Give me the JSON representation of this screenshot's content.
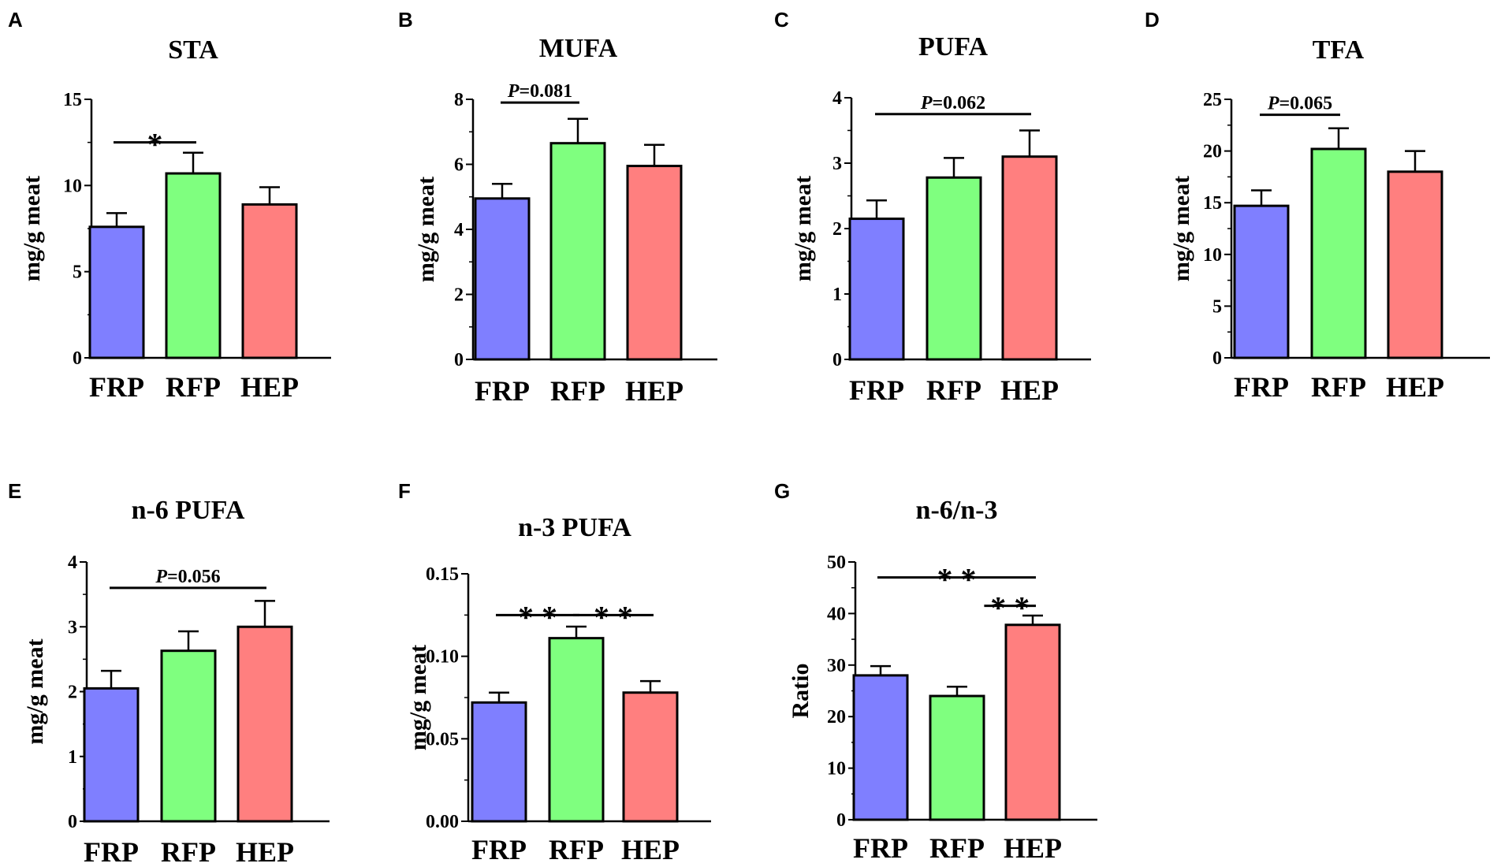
{
  "chart_data": [
    {
      "panel": "A",
      "type": "bar",
      "title": "STA",
      "ylabel": "mg/g meat",
      "categories": [
        "FRP",
        "RFP",
        "HEP"
      ],
      "values": [
        7.6,
        10.7,
        8.9
      ],
      "errors": [
        0.8,
        1.2,
        1.0
      ],
      "ylim": [
        0,
        15
      ],
      "yticks": [
        "0",
        "5",
        "10",
        "15"
      ],
      "ytick_values": [
        0,
        5,
        10,
        15
      ],
      "colors": [
        "#7f7fff",
        "#7fff7f",
        "#ff7f7f"
      ],
      "annotations": [
        {
          "from": 0,
          "to": 1,
          "label": "*",
          "y": 12.5
        }
      ]
    },
    {
      "panel": "B",
      "type": "bar",
      "title": "MUFA",
      "ylabel": "mg/g meat",
      "categories": [
        "FRP",
        "RFP",
        "HEP"
      ],
      "values": [
        4.95,
        6.65,
        5.95
      ],
      "errors": [
        0.45,
        0.75,
        0.65
      ],
      "ylim": [
        0,
        8
      ],
      "yticks": [
        "0",
        "2",
        "4",
        "6",
        "8"
      ],
      "ytick_values": [
        0,
        2,
        4,
        6,
        8
      ],
      "colors": [
        "#7f7fff",
        "#7fff7f",
        "#ff7f7f"
      ],
      "annotations": [
        {
          "from": 0,
          "to": 1,
          "label": "P=0.081",
          "y": 7.9
        }
      ]
    },
    {
      "panel": "C",
      "type": "bar",
      "title": "PUFA",
      "ylabel": "mg/g meat",
      "categories": [
        "FRP",
        "RFP",
        "HEP"
      ],
      "values": [
        2.15,
        2.78,
        3.1
      ],
      "errors": [
        0.28,
        0.3,
        0.4
      ],
      "ylim": [
        0,
        4
      ],
      "yticks": [
        "0",
        "1",
        "2",
        "3",
        "4"
      ],
      "ytick_values": [
        0,
        1,
        2,
        3,
        4
      ],
      "colors": [
        "#7f7fff",
        "#7fff7f",
        "#ff7f7f"
      ],
      "annotations": [
        {
          "from": 0,
          "to": 2,
          "label": "P=0.062",
          "y": 3.75
        }
      ]
    },
    {
      "panel": "D",
      "type": "bar",
      "title": "TFA",
      "ylabel": "mg/g meat",
      "categories": [
        "FRP",
        "RFP",
        "HEP"
      ],
      "values": [
        14.7,
        20.2,
        18.0
      ],
      "errors": [
        1.5,
        2.0,
        2.0
      ],
      "ylim": [
        0,
        25
      ],
      "yticks": [
        "0",
        "5",
        "10",
        "15",
        "20",
        "25"
      ],
      "ytick_values": [
        0,
        5,
        10,
        15,
        20,
        25
      ],
      "colors": [
        "#7f7fff",
        "#7fff7f",
        "#ff7f7f"
      ],
      "annotations": [
        {
          "from": 0,
          "to": 1,
          "label": "P=0.065",
          "y": 23.5
        }
      ]
    },
    {
      "panel": "E",
      "type": "bar",
      "title": "n-6 PUFA",
      "ylabel": "mg/g meat",
      "categories": [
        "FRP",
        "RFP",
        "HEP"
      ],
      "values": [
        2.05,
        2.63,
        3.0
      ],
      "errors": [
        0.27,
        0.3,
        0.4
      ],
      "ylim": [
        0,
        4
      ],
      "yticks": [
        "0",
        "1",
        "2",
        "3",
        "4"
      ],
      "ytick_values": [
        0,
        1,
        2,
        3,
        4
      ],
      "colors": [
        "#7f7fff",
        "#7fff7f",
        "#ff7f7f"
      ],
      "annotations": [
        {
          "from": 0,
          "to": 2,
          "label": "P=0.056",
          "y": 3.6
        }
      ]
    },
    {
      "panel": "F",
      "type": "bar",
      "title": "n-3 PUFA",
      "ylabel": "mg/g meat",
      "categories": [
        "FRP",
        "RFP",
        "HEP"
      ],
      "values": [
        0.072,
        0.111,
        0.078
      ],
      "errors": [
        0.006,
        0.007,
        0.007
      ],
      "ylim": [
        0,
        0.15
      ],
      "yticks": [
        "0.00",
        "0.05",
        "0.10",
        "0.15"
      ],
      "ytick_values": [
        0,
        0.05,
        0.1,
        0.15
      ],
      "colors": [
        "#7f7fff",
        "#7fff7f",
        "#ff7f7f"
      ],
      "annotations": [
        {
          "from": 0,
          "to": 1,
          "label": "**",
          "y": 0.125
        },
        {
          "from": 1,
          "to": 2,
          "label": "**",
          "y": 0.125
        }
      ]
    },
    {
      "panel": "G",
      "type": "bar",
      "title": "n-6/n-3",
      "ylabel": "Ratio",
      "categories": [
        "FRP",
        "RFP",
        "HEP"
      ],
      "values": [
        28.0,
        24.0,
        37.8
      ],
      "errors": [
        1.8,
        1.8,
        1.8
      ],
      "ylim": [
        0,
        50
      ],
      "yticks": [
        "0",
        "10",
        "20",
        "30",
        "40",
        "50"
      ],
      "ytick_values": [
        0,
        10,
        20,
        30,
        40,
        50
      ],
      "colors": [
        "#7f7fff",
        "#7fff7f",
        "#ff7f7f"
      ],
      "annotations": [
        {
          "from": 0,
          "to": 2,
          "label": "**",
          "y": 47.0
        },
        {
          "from": 1.4,
          "to": 2,
          "label": "**",
          "y": 41.5
        }
      ]
    }
  ]
}
